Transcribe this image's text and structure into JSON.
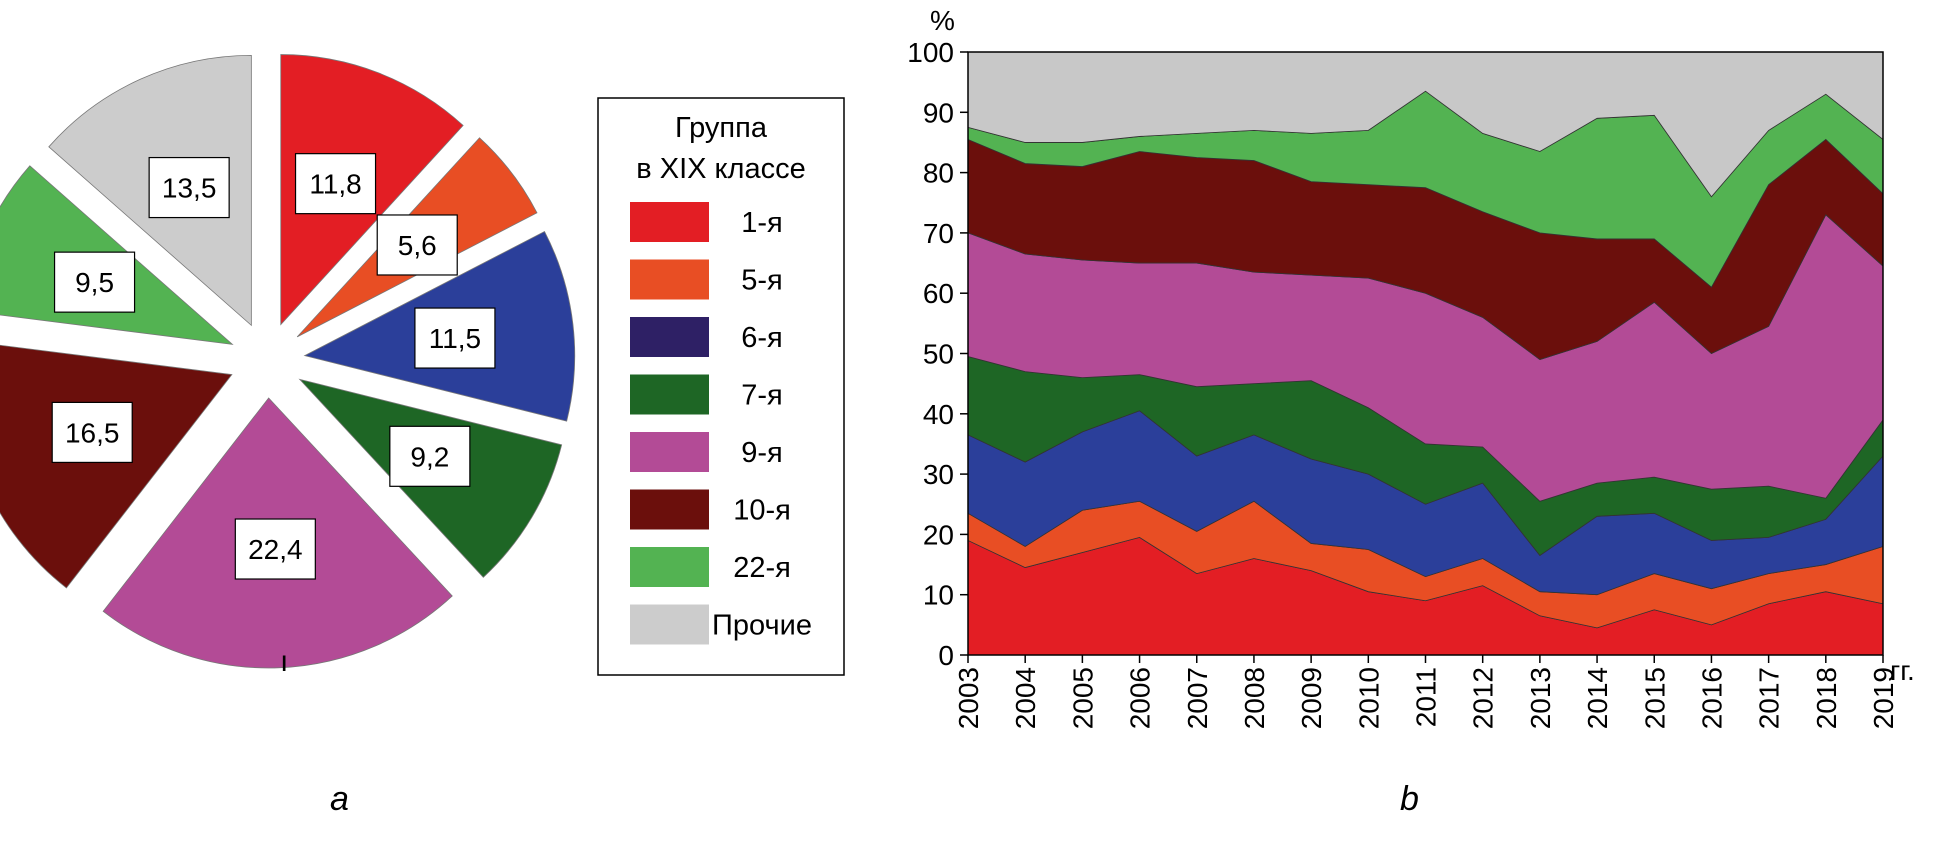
{
  "panel_labels": {
    "a": "a",
    "b": "b"
  },
  "legend": {
    "title_line1": "Группа",
    "title_line2": "в XIX классе",
    "items": [
      {
        "label": "1-я",
        "color": "#e31e24"
      },
      {
        "label": "5-я",
        "color": "#e84e24"
      },
      {
        "label": "6-я",
        "color": "#2e2065"
      },
      {
        "label": "7-я",
        "color": "#1e6625"
      },
      {
        "label": "9-я",
        "color": "#b34b96"
      },
      {
        "label": "10-я",
        "color": "#6b0f0c"
      },
      {
        "label": "22-я",
        "color": "#53b352"
      },
      {
        "label": "Прочие",
        "color": "#cccccc"
      }
    ]
  },
  "stray_mark": "ı",
  "chart_data": [
    {
      "type": "pie",
      "slices": [
        {
          "label": "11,8",
          "value": 11.8,
          "color": "#e31e24"
        },
        {
          "label": "5,6",
          "value": 5.6,
          "color": "#e84e24"
        },
        {
          "label": "11,5",
          "value": 11.5,
          "color": "#2b3f9a"
        },
        {
          "label": "9,2",
          "value": 9.2,
          "color": "#1e6625"
        },
        {
          "label": "22,4",
          "value": 22.4,
          "color": "#b34b96"
        },
        {
          "label": "16,5",
          "value": 16.5,
          "color": "#6b0f0c"
        },
        {
          "label": "9,5",
          "value": 9.5,
          "color": "#53b352"
        },
        {
          "label": "13,5",
          "value": 13.5,
          "color": "#cccccc"
        }
      ]
    },
    {
      "type": "area",
      "stacked": true,
      "x": [
        "2003",
        "2004",
        "2005",
        "2006",
        "2007",
        "2008",
        "2009",
        "2010",
        "2011",
        "2012",
        "2013",
        "2014",
        "2015",
        "2016",
        "2017",
        "2018",
        "2019"
      ],
      "xlabel_unit": "гг.",
      "ylabel": "%",
      "ylim": [
        0,
        100
      ],
      "yticks": [
        0,
        10,
        20,
        30,
        40,
        50,
        60,
        70,
        80,
        90,
        100
      ],
      "series": [
        {
          "color": "#e31e24",
          "values": [
            19,
            14.5,
            17,
            19.5,
            13.5,
            16,
            14,
            10.5,
            9,
            11.5,
            6.5,
            4.5,
            7.5,
            5,
            8.5,
            10.5,
            8.5
          ]
        },
        {
          "color": "#e84e24",
          "values": [
            4.5,
            3.5,
            7,
            6,
            7,
            9.5,
            4.5,
            7,
            4,
            4.5,
            4,
            5.5,
            6,
            6,
            5,
            4.5,
            9.5
          ]
        },
        {
          "color": "#2b3f9a",
          "values": [
            13,
            14,
            13,
            15,
            12.5,
            11,
            14,
            12.5,
            12,
            12.5,
            6,
            13,
            10,
            8,
            6,
            7.5,
            15
          ]
        },
        {
          "color": "#1e6625",
          "values": [
            13,
            15,
            9,
            6,
            11.5,
            8.5,
            13,
            11,
            10,
            6,
            9,
            5.5,
            6,
            8.5,
            8.5,
            3.5,
            6
          ]
        },
        {
          "color": "#b34b96",
          "values": [
            20.5,
            19.5,
            19.5,
            18.5,
            20.5,
            18.5,
            17.5,
            21.5,
            25,
            21.5,
            23.5,
            23.5,
            29,
            22.5,
            26.5,
            47,
            25.5
          ]
        },
        {
          "color": "#6b0f0c",
          "values": [
            15.5,
            15,
            15.5,
            18.5,
            17.5,
            18.5,
            15.5,
            15.5,
            17.5,
            17.5,
            21,
            17,
            10.5,
            11,
            23.5,
            12.5,
            12
          ]
        },
        {
          "color": "#53b352",
          "values": [
            2,
            3.5,
            4,
            2.5,
            4,
            5,
            8,
            9,
            16,
            13,
            13.5,
            20,
            20.5,
            15,
            9,
            7.5,
            9
          ]
        },
        {
          "color": "#c8c8c8",
          "values": [
            12.5,
            15,
            15,
            14,
            13.5,
            13,
            13.5,
            13,
            6.5,
            13.5,
            16.5,
            11,
            10.5,
            24,
            13,
            7,
            14.5
          ]
        }
      ]
    }
  ]
}
